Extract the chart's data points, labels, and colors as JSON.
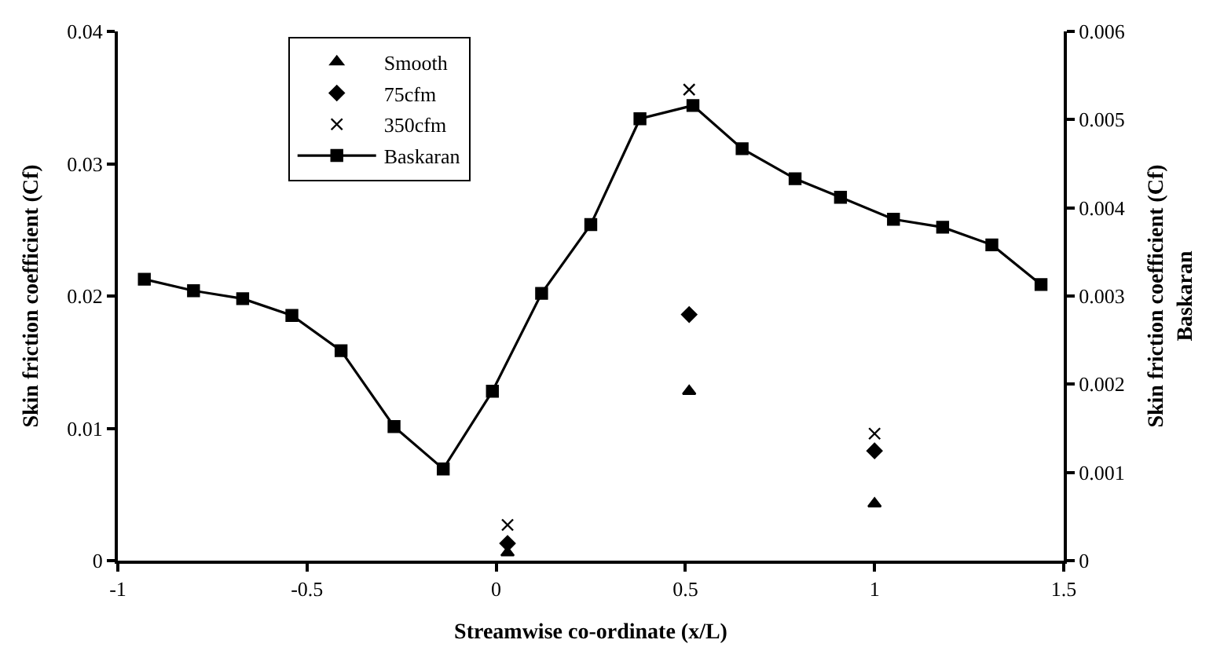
{
  "chart_data": {
    "type": "scatter",
    "xlabel": "Streamwise co-ordinate (x/L)",
    "ylabel": "Skin friction coefficient (Cf)",
    "y2label": "Skin friction coefficient (Cf)\nBaskaran",
    "xlim": [
      -1,
      1.5
    ],
    "xticks": [
      -1,
      -0.5,
      0,
      0.5,
      1,
      1.5
    ],
    "ylim": [
      0,
      0.04
    ],
    "yticks": [
      0,
      0.01,
      0.02,
      0.03,
      0.04
    ],
    "y2lim": [
      0,
      0.006
    ],
    "y2ticks": [
      0,
      0.001,
      0.002,
      0.003,
      0.004,
      0.005,
      0.006
    ],
    "legend": "top left",
    "series": [
      {
        "name": "Smooth",
        "marker": "triangle",
        "color": "#000000",
        "x": [
          0.03,
          0.51,
          1.0
        ],
        "values": [
          0.0006,
          0.0128,
          0.0043
        ]
      },
      {
        "name": "75cfm",
        "marker": "diamond",
        "color": "#000000",
        "x": [
          0.03,
          0.51,
          1.0
        ],
        "values": [
          0.0013,
          0.0186,
          0.0083
        ]
      },
      {
        "name": "350cfm",
        "marker": "cross",
        "color": "#000000",
        "x": [
          0.03,
          0.51,
          1.0
        ],
        "values": [
          0.0027,
          0.0356,
          0.0096
        ]
      },
      {
        "name": "Baskaran",
        "type": "line",
        "marker": "square",
        "line_style": "solid",
        "axis": "y2",
        "color": "#000000",
        "x": [
          -0.93,
          -0.8,
          -0.67,
          -0.54,
          -0.41,
          -0.27,
          -0.14,
          -0.01,
          0.12,
          0.25,
          0.38,
          0.52,
          0.65,
          0.79,
          0.91,
          1.05,
          1.18,
          1.31,
          1.44
        ],
        "values": [
          0.00319,
          0.00306,
          0.00297,
          0.00278,
          0.00238,
          0.00152,
          0.00104,
          0.00192,
          0.00303,
          0.00381,
          0.00501,
          0.00516,
          0.00467,
          0.00433,
          0.00412,
          0.00387,
          0.00378,
          0.00358,
          0.00313
        ]
      }
    ]
  }
}
